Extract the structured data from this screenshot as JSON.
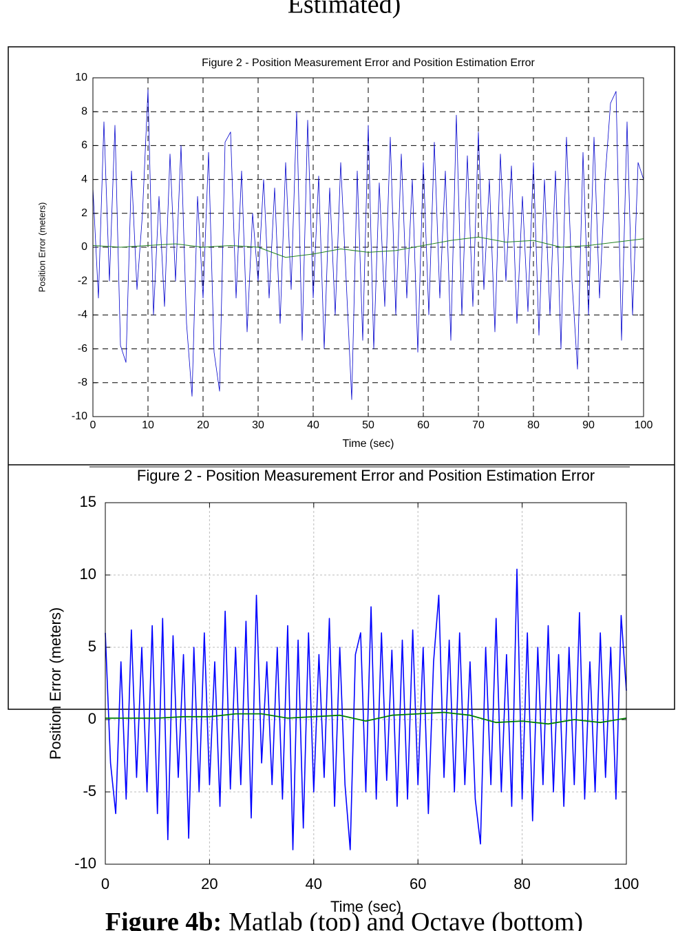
{
  "heading_fragment": "Estimated)",
  "chart_data": [
    {
      "type": "line",
      "title": "Figure 2 - Position Measurement Error and Position Estimation Error",
      "x_label": "Time (sec)",
      "y_label": "Position Error (meters)",
      "xlim": [
        0,
        100
      ],
      "ylim": [
        -10,
        10
      ],
      "xticks": [
        0,
        10,
        20,
        30,
        40,
        50,
        60,
        70,
        80,
        90,
        100
      ],
      "yticks": [
        -10,
        -8,
        -6,
        -4,
        -2,
        0,
        2,
        4,
        6,
        8,
        10
      ],
      "grid": true,
      "series": [
        {
          "color": "#0000cc",
          "x": [
            0,
            1,
            2,
            3,
            4,
            5,
            6,
            7,
            8,
            9,
            10,
            11,
            12,
            13,
            14,
            15,
            16,
            17,
            18,
            19,
            20,
            21,
            22,
            23,
            24,
            25,
            26,
            27,
            28,
            29,
            30,
            31,
            32,
            33,
            34,
            35,
            36,
            37,
            38,
            39,
            40,
            41,
            42,
            43,
            44,
            45,
            46,
            47,
            48,
            49,
            50,
            51,
            52,
            53,
            54,
            55,
            56,
            57,
            58,
            59,
            60,
            61,
            62,
            63,
            64,
            65,
            66,
            67,
            68,
            69,
            70,
            71,
            72,
            73,
            74,
            75,
            76,
            77,
            78,
            79,
            80,
            81,
            82,
            83,
            84,
            85,
            86,
            87,
            88,
            89,
            90,
            91,
            92,
            93,
            94,
            95,
            96,
            97,
            98,
            99,
            100
          ],
          "values": [
            3.5,
            -3,
            7.4,
            -2,
            7.2,
            -5.8,
            -6.8,
            4.5,
            -2.5,
            2,
            9.3,
            -4,
            3,
            -3.5,
            5.5,
            -2,
            6,
            -4.5,
            -8.8,
            3,
            -3,
            5.6,
            -6.2,
            -8.5,
            6.2,
            6.8,
            -3,
            4.5,
            -5,
            2,
            -2,
            4,
            -3,
            3.5,
            -4.5,
            5,
            -2.5,
            8,
            -5.5,
            7.5,
            -3,
            4.2,
            -6,
            3.5,
            -4,
            5,
            -2,
            -9,
            4.5,
            -5.5,
            7.2,
            -6,
            3.8,
            -3.5,
            6.5,
            -4,
            5.5,
            -3,
            4,
            -6.2,
            5,
            -4,
            6.2,
            -3,
            4.5,
            -5.5,
            7.8,
            -4,
            5.4,
            -3.5,
            6.8,
            -2.5,
            4,
            -5,
            5.5,
            -2,
            4.8,
            -4.5,
            3,
            -3.8,
            5,
            -5.2,
            4,
            -4,
            4.5,
            -6,
            6.5,
            -2,
            -7.2,
            5.6,
            -4,
            6.5,
            -3,
            4,
            8.5,
            9.2,
            -5.5,
            7.4,
            -4,
            5,
            4
          ]
        },
        {
          "color": "#208020",
          "x": [
            0,
            5,
            10,
            15,
            20,
            25,
            30,
            35,
            40,
            45,
            50,
            55,
            60,
            65,
            70,
            75,
            80,
            85,
            90,
            95,
            100
          ],
          "values": [
            0.1,
            0,
            0.1,
            0.2,
            0,
            0.1,
            0,
            -0.6,
            -0.4,
            -0.1,
            -0.3,
            -0.2,
            0.1,
            0.4,
            0.6,
            0.3,
            0.4,
            0,
            0.1,
            0.3,
            0.5
          ]
        }
      ]
    },
    {
      "type": "line",
      "title": "Figure 2 - Position Measurement Error and Position Estimation Error",
      "x_label": "Time (sec)",
      "y_label": "Position Error (meters)",
      "xlim": [
        0,
        100
      ],
      "ylim": [
        -10,
        15
      ],
      "xticks": [
        0,
        20,
        40,
        60,
        80,
        100
      ],
      "yticks": [
        -10,
        -5,
        0,
        5,
        10,
        15
      ],
      "grid": true,
      "series": [
        {
          "color": "#0000ff",
          "x": [
            0,
            1,
            2,
            3,
            4,
            5,
            6,
            7,
            8,
            9,
            10,
            11,
            12,
            13,
            14,
            15,
            16,
            17,
            18,
            19,
            20,
            21,
            22,
            23,
            24,
            25,
            26,
            27,
            28,
            29,
            30,
            31,
            32,
            33,
            34,
            35,
            36,
            37,
            38,
            39,
            40,
            41,
            42,
            43,
            44,
            45,
            46,
            47,
            48,
            49,
            50,
            51,
            52,
            53,
            54,
            55,
            56,
            57,
            58,
            59,
            60,
            61,
            62,
            63,
            64,
            65,
            66,
            67,
            68,
            69,
            70,
            71,
            72,
            73,
            74,
            75,
            76,
            77,
            78,
            79,
            80,
            81,
            82,
            83,
            84,
            85,
            86,
            87,
            88,
            89,
            90,
            91,
            92,
            93,
            94,
            95,
            96,
            97,
            98,
            99,
            100
          ],
          "values": [
            6,
            -3,
            -6.5,
            4,
            -5.5,
            6.2,
            -4,
            5,
            -5,
            6.5,
            -6.5,
            7,
            -8.3,
            5.8,
            -4,
            4.5,
            -8.2,
            5,
            -5,
            6,
            -4.5,
            4,
            -6,
            7.5,
            -4.8,
            5,
            -4.5,
            6.8,
            -6.8,
            8.6,
            -3,
            4,
            -4.5,
            5,
            -5.5,
            6.5,
            -9,
            5.5,
            -7.5,
            6,
            -5,
            4.5,
            -4,
            7,
            -6,
            5,
            -4.5,
            -9,
            4.5,
            6,
            -5,
            7.8,
            -5.5,
            6,
            -4.2,
            4.8,
            -6,
            5.5,
            -5.5,
            6.2,
            -4.5,
            5,
            -6.5,
            4,
            8.6,
            -4,
            5.5,
            -5,
            6,
            -4.5,
            4,
            -5.5,
            -8.6,
            5,
            -4.5,
            7,
            -5,
            4.5,
            -6,
            10.4,
            -5.5,
            6,
            -7,
            5,
            -4.5,
            6.5,
            -5,
            4.5,
            -6,
            5,
            -4.5,
            7.4,
            -5.5,
            4,
            -5,
            6,
            -4,
            5,
            -5.5,
            7.2,
            2
          ]
        },
        {
          "color": "#008000",
          "x": [
            0,
            5,
            10,
            15,
            20,
            25,
            30,
            35,
            40,
            45,
            50,
            55,
            60,
            65,
            70,
            75,
            80,
            85,
            90,
            95,
            100
          ],
          "values": [
            0.1,
            0.1,
            0.1,
            0.2,
            0.2,
            0.4,
            0.4,
            0.1,
            0.2,
            0.3,
            -0.1,
            0.3,
            0.4,
            0.5,
            0.3,
            -0.2,
            -0.1,
            -0.3,
            0,
            -0.2,
            0.1
          ]
        }
      ]
    }
  ],
  "caption_label": "Figure 4b:",
  "caption_text": "Matlab (top) and Octave (bottom)"
}
